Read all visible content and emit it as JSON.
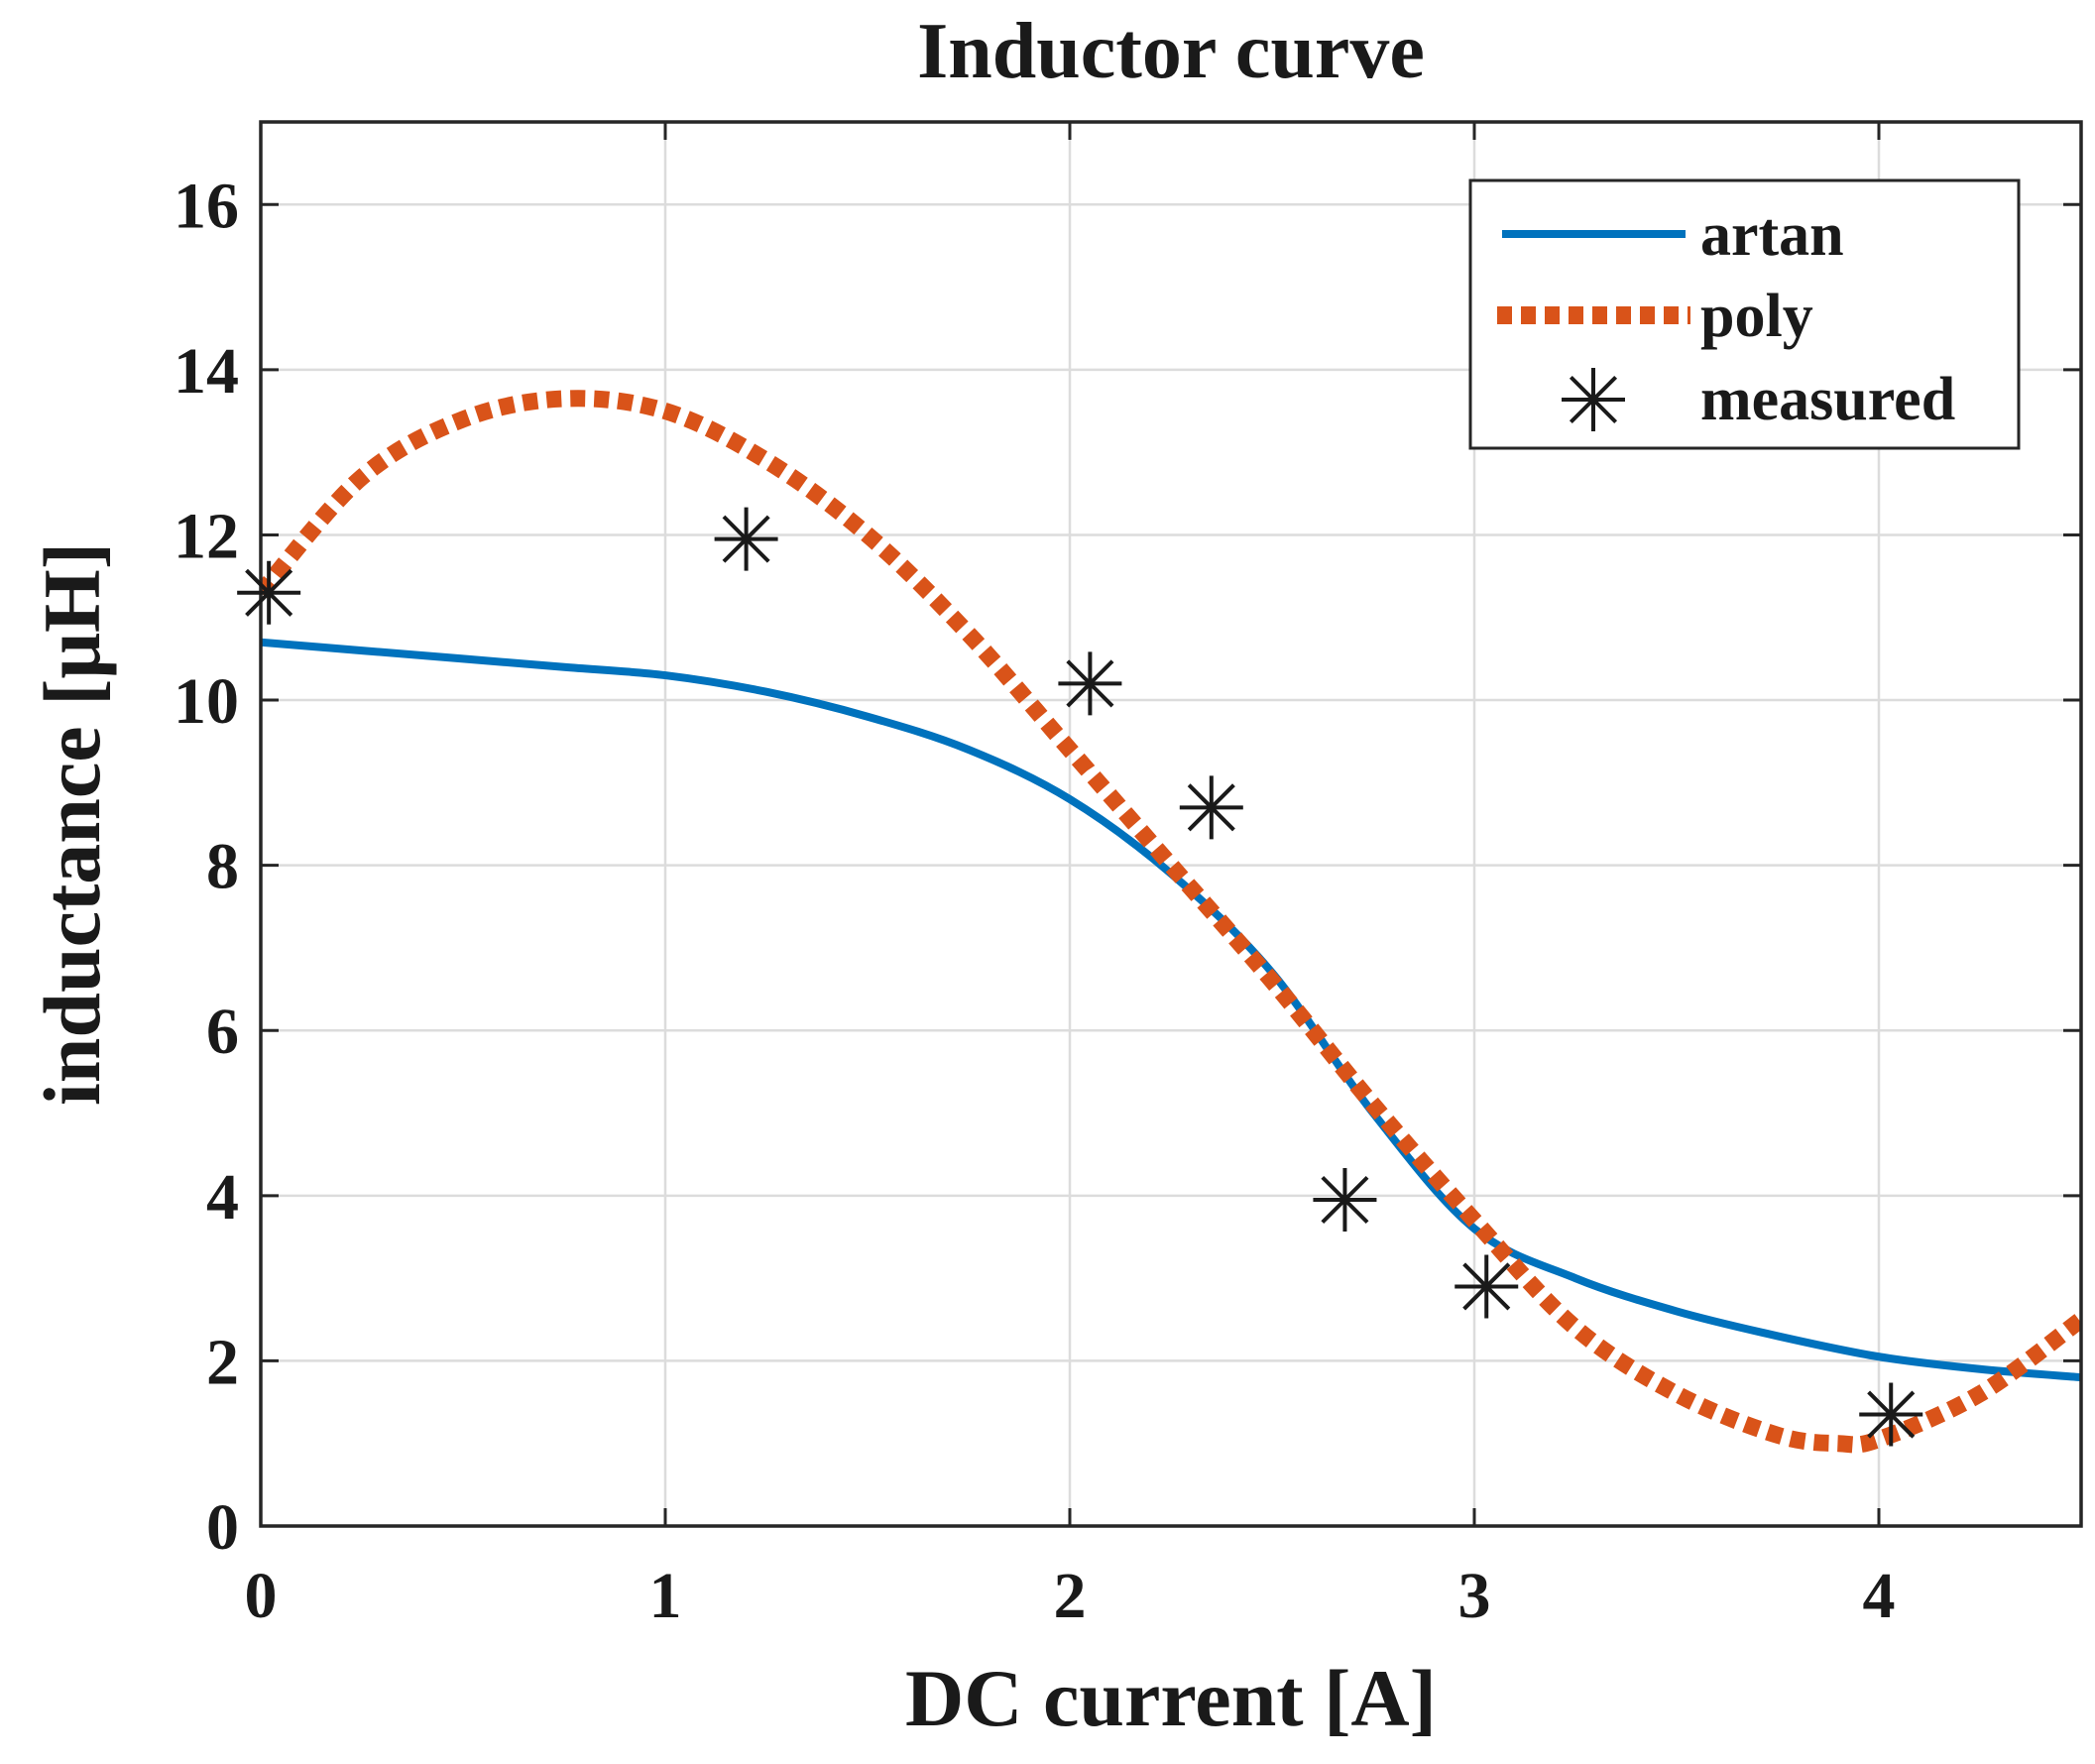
{
  "chart_data": {
    "type": "line",
    "title": "Inductor curve",
    "xlabel": "DC current [A]",
    "ylabel": "inductance [μH]",
    "xlim": [
      0,
      4.5
    ],
    "ylim": [
      0,
      17
    ],
    "xticks": [
      0,
      1,
      2,
      3,
      4
    ],
    "yticks": [
      0,
      2,
      4,
      6,
      8,
      10,
      12,
      14,
      16
    ],
    "grid": true,
    "legend_position": "top-right",
    "colors": {
      "artan": "#0072BD",
      "poly": "#D95319",
      "measured": "#1a1a1a"
    },
    "series": [
      {
        "name": "artan",
        "style": "solid-line",
        "x": [
          0,
          0.25,
          0.5,
          0.75,
          1.0,
          1.25,
          1.5,
          1.75,
          2.0,
          2.25,
          2.5,
          2.75,
          3.0,
          3.25,
          3.5,
          3.75,
          4.0,
          4.25,
          4.5
        ],
        "y": [
          10.7,
          10.6,
          10.5,
          10.4,
          10.3,
          10.1,
          9.8,
          9.4,
          8.8,
          7.9,
          6.7,
          5.0,
          3.6,
          3.0,
          2.6,
          2.3,
          2.05,
          1.9,
          1.8
        ]
      },
      {
        "name": "poly",
        "style": "dotted-line",
        "x": [
          0,
          0.25,
          0.5,
          0.75,
          1.0,
          1.25,
          1.5,
          1.75,
          2.0,
          2.25,
          2.5,
          2.75,
          3.0,
          3.25,
          3.5,
          3.75,
          3.9,
          4.0,
          4.25,
          4.5
        ],
        "y": [
          11.3,
          12.7,
          13.4,
          13.65,
          13.5,
          12.9,
          12.0,
          10.8,
          9.4,
          8.0,
          6.6,
          5.1,
          3.7,
          2.4,
          1.6,
          1.1,
          1.0,
          1.05,
          1.6,
          2.5
        ]
      },
      {
        "name": "measured",
        "style": "asterisk-markers",
        "x": [
          0.02,
          1.2,
          2.05,
          2.35,
          2.68,
          3.03,
          4.03
        ],
        "y": [
          11.3,
          11.95,
          10.2,
          8.7,
          3.95,
          2.9,
          1.35
        ]
      }
    ]
  }
}
